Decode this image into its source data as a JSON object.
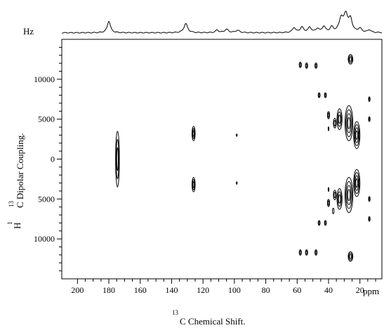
{
  "chart_data": {
    "type": "contour",
    "projection_label": "Hz",
    "xlabel_sup": "13",
    "xlabel_main": "C   Chemical Shift.",
    "x_unit": "ppm",
    "ylabel_pre": "1",
    "ylabel_mid": "H",
    "ylabel_sup": "13",
    "ylabel_main": "C Dipolar Coupling.",
    "xlim": [
      210,
      6
    ],
    "ylim": [
      -15000,
      15000
    ],
    "x_reversed": true,
    "y_inverted_labels": true,
    "x_ticks": [
      200,
      180,
      160,
      140,
      120,
      100,
      80,
      60,
      40,
      20
    ],
    "x_tick_labels": [
      "200",
      "180",
      "160",
      "140",
      "120",
      "100",
      "80",
      "60",
      "40",
      "20"
    ],
    "y_ticks": [
      10000,
      5000,
      0,
      -5000,
      -10000
    ],
    "y_tick_labels": [
      "10000",
      "5000",
      "0",
      "5000",
      "10000"
    ],
    "projection": [
      {
        "ppm": 180,
        "height": 1.0,
        "width": 1.2
      },
      {
        "ppm": 131,
        "height": 0.78,
        "width": 1.4
      },
      {
        "ppm": 111,
        "height": 0.22,
        "width": 1.2
      },
      {
        "ppm": 105,
        "height": 0.28,
        "width": 1.5
      },
      {
        "ppm": 98,
        "height": 0.2,
        "width": 1.5
      },
      {
        "ppm": 62,
        "height": 0.42,
        "width": 1.2
      },
      {
        "ppm": 57,
        "height": 0.45,
        "width": 1.3
      },
      {
        "ppm": 52,
        "height": 0.42,
        "width": 1.3
      },
      {
        "ppm": 47,
        "height": 0.32,
        "width": 1.2
      },
      {
        "ppm": 43,
        "height": 0.5,
        "width": 1.2
      },
      {
        "ppm": 38,
        "height": 0.42,
        "width": 1.3
      },
      {
        "ppm": 32,
        "height": 1.15,
        "width": 1.5
      },
      {
        "ppm": 29,
        "height": 1.45,
        "width": 1.5
      },
      {
        "ppm": 26,
        "height": 1.05,
        "width": 1.3
      },
      {
        "ppm": 20,
        "height": 0.32,
        "width": 1.4
      },
      {
        "ppm": 14,
        "height": 0.22,
        "width": 1.2
      }
    ],
    "peaks": [
      {
        "ppm": 174.5,
        "coupling": 0,
        "dx": 1.2,
        "dy": 3500,
        "levels": 3
      },
      {
        "ppm": 126,
        "coupling": 3200,
        "dx": 1.0,
        "dy": 900,
        "levels": 3
      },
      {
        "ppm": 126,
        "coupling": -3200,
        "dx": 1.0,
        "dy": 900,
        "levels": 3
      },
      {
        "ppm": 98.5,
        "coupling": 3000,
        "dx": 0.3,
        "dy": 150,
        "levels": 1
      },
      {
        "ppm": 98.5,
        "coupling": -3000,
        "dx": 0.3,
        "dy": 150,
        "levels": 1
      },
      {
        "ppm": 58,
        "coupling": 11800,
        "dx": 0.7,
        "dy": 350,
        "levels": 2
      },
      {
        "ppm": 54,
        "coupling": 11700,
        "dx": 0.7,
        "dy": 350,
        "levels": 2
      },
      {
        "ppm": 48,
        "coupling": 11700,
        "dx": 0.7,
        "dy": 350,
        "levels": 2
      },
      {
        "ppm": 58,
        "coupling": -11700,
        "dx": 0.7,
        "dy": 350,
        "levels": 2
      },
      {
        "ppm": 54,
        "coupling": -11700,
        "dx": 0.7,
        "dy": 350,
        "levels": 2
      },
      {
        "ppm": 48,
        "coupling": -11700,
        "dx": 0.7,
        "dy": 350,
        "levels": 2
      },
      {
        "ppm": 46,
        "coupling": 8000,
        "dx": 0.6,
        "dy": 300,
        "levels": 2
      },
      {
        "ppm": 42,
        "coupling": 8000,
        "dx": 0.6,
        "dy": 300,
        "levels": 2
      },
      {
        "ppm": 46,
        "coupling": -8000,
        "dx": 0.6,
        "dy": 300,
        "levels": 2
      },
      {
        "ppm": 42,
        "coupling": -8000,
        "dx": 0.6,
        "dy": 300,
        "levels": 2
      },
      {
        "ppm": 40,
        "coupling": 5500,
        "dx": 0.7,
        "dy": 450,
        "levels": 2
      },
      {
        "ppm": 40,
        "coupling": -5500,
        "dx": 0.7,
        "dy": 450,
        "levels": 2
      },
      {
        "ppm": 40,
        "coupling": 3800,
        "dx": 0.2,
        "dy": 250,
        "levels": 1
      },
      {
        "ppm": 40,
        "coupling": -3800,
        "dx": 0.2,
        "dy": 250,
        "levels": 1
      },
      {
        "ppm": 26,
        "coupling": 12500,
        "dx": 1.5,
        "dy": 600,
        "levels": 3
      },
      {
        "ppm": 26,
        "coupling": -12200,
        "dx": 1.5,
        "dy": 600,
        "levels": 3
      },
      {
        "ppm": 27,
        "coupling": 4500,
        "dx": 2.5,
        "dy": 2200,
        "levels": 4
      },
      {
        "ppm": 22,
        "coupling": 3000,
        "dx": 2.0,
        "dy": 1700,
        "levels": 4
      },
      {
        "ppm": 33,
        "coupling": 5000,
        "dx": 1.6,
        "dy": 1300,
        "levels": 3
      },
      {
        "ppm": 36,
        "coupling": 4500,
        "dx": 0.9,
        "dy": 600,
        "levels": 2
      },
      {
        "ppm": 27,
        "coupling": -4500,
        "dx": 2.5,
        "dy": 2200,
        "levels": 4
      },
      {
        "ppm": 22,
        "coupling": -3000,
        "dx": 2.0,
        "dy": 1700,
        "levels": 4
      },
      {
        "ppm": 33,
        "coupling": -5000,
        "dx": 1.6,
        "dy": 1300,
        "levels": 3
      },
      {
        "ppm": 36,
        "coupling": -4500,
        "dx": 0.9,
        "dy": 600,
        "levels": 2
      },
      {
        "ppm": 37,
        "coupling": -6500,
        "dx": 0.5,
        "dy": 350,
        "levels": 1
      },
      {
        "ppm": 14,
        "coupling": 7500,
        "dx": 0.5,
        "dy": 300,
        "levels": 2
      },
      {
        "ppm": 14,
        "coupling": 5000,
        "dx": 0.5,
        "dy": 300,
        "levels": 2
      },
      {
        "ppm": 14,
        "coupling": -5000,
        "dx": 0.5,
        "dy": 300,
        "levels": 2
      },
      {
        "ppm": 14,
        "coupling": -7500,
        "dx": 0.5,
        "dy": 300,
        "levels": 2
      }
    ]
  }
}
